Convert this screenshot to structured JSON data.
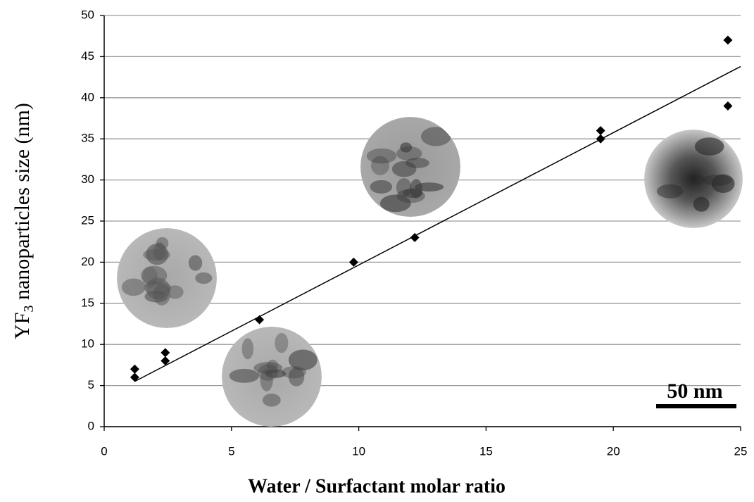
{
  "chart_data": {
    "type": "scatter",
    "y_label_parts": [
      "YF",
      "3",
      " nanoparticles size (nm)"
    ],
    "x_label": "Water / Surfactant molar ratio",
    "annotation": "50 nm",
    "color": "#000000",
    "series": [
      {
        "color": "#000000",
        "x": [
          1.2,
          1.2,
          2.4,
          2.4,
          6.1,
          9.8,
          12.2,
          19.5,
          19.5,
          24.5,
          24.5
        ],
        "values": [
          7,
          6,
          9,
          8,
          13,
          20,
          23,
          36,
          35,
          47,
          39
        ]
      }
    ],
    "trendline": {
      "x": [
        1.2,
        25
      ],
      "values": [
        5.5,
        43.8
      ]
    },
    "xlim": [
      0,
      25
    ],
    "xticks": [
      0,
      5,
      10,
      15,
      20,
      25
    ],
    "ylim": [
      0,
      50
    ],
    "yticks": [
      0,
      5,
      10,
      15,
      20,
      25,
      30,
      35,
      40,
      45,
      50
    ],
    "grid": true
  }
}
